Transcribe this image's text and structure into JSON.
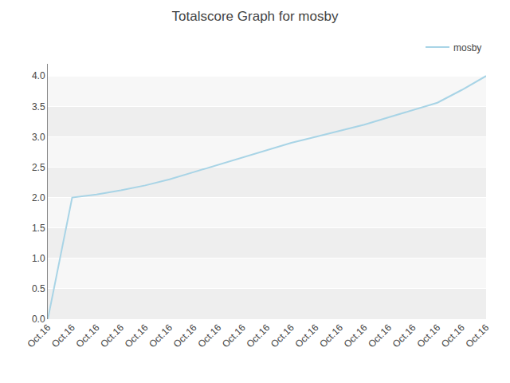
{
  "chart_data": {
    "type": "line",
    "title": "Totalscore Graph for mosby",
    "categories": [
      "Oct.16",
      "Oct.16",
      "Oct.16",
      "Oct.16",
      "Oct.16",
      "Oct.16",
      "Oct.16",
      "Oct.16",
      "Oct.16",
      "Oct.16",
      "Oct.16",
      "Oct.16",
      "Oct.16",
      "Oct.16",
      "Oct.16",
      "Oct.16",
      "Oct.16",
      "Oct.16",
      "Oct.16"
    ],
    "series": [
      {
        "name": "mosby",
        "color": "#a8d4e6",
        "values": [
          0.0,
          2.0,
          2.05,
          2.12,
          2.2,
          2.3,
          2.42,
          2.54,
          2.66,
          2.78,
          2.9,
          3.0,
          3.1,
          3.2,
          3.32,
          3.44,
          3.56,
          3.77,
          4.0
        ]
      }
    ],
    "ylim": [
      0.0,
      4.2
    ],
    "yticks": [
      {
        "value": 0.0,
        "label": "0.0"
      },
      0.5,
      {
        "value": 1.0,
        "label": "1.0"
      },
      1.5,
      {
        "value": 2.0,
        "label": "2.0"
      },
      2.5,
      {
        "value": 3.0,
        "label": "3.0"
      },
      3.5,
      {
        "value": 4.0,
        "label": "4.0"
      }
    ],
    "grid": true,
    "legend": "upper right"
  }
}
